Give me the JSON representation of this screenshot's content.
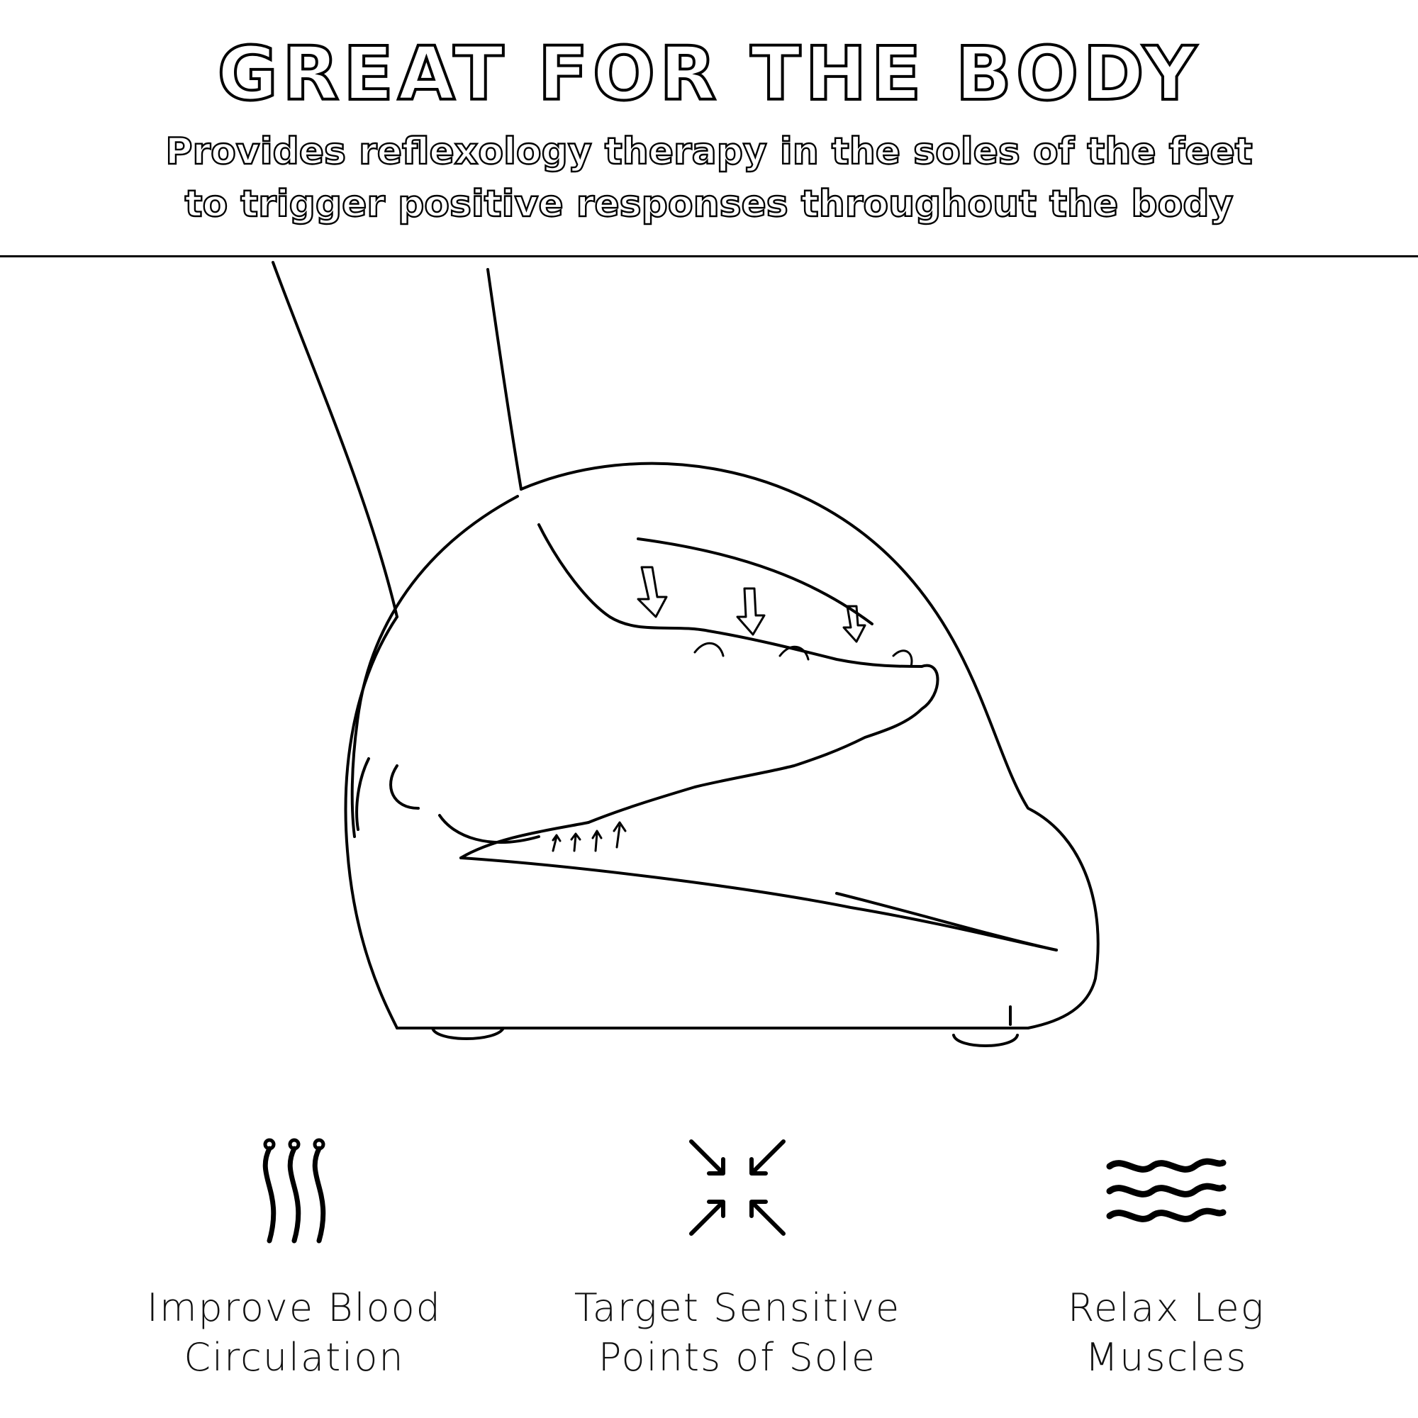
{
  "header": {
    "title": "GREAT FOR THE BODY",
    "subtitle_line1": "Provides reflexology therapy in the soles of the feet",
    "subtitle_line2": "to trigger positive responses throughout the body"
  },
  "illustration": {
    "icon": "foot-massager-illustration"
  },
  "features": [
    {
      "icon": "heat-waves-icon",
      "line1": "Improve Blood",
      "line2": "Circulation"
    },
    {
      "icon": "arrows-inward-icon",
      "line1": "Target Sensitive",
      "line2": "Points of Sole"
    },
    {
      "icon": "waves-icon",
      "line1": "Relax Leg",
      "line2": "Muscles"
    }
  ]
}
